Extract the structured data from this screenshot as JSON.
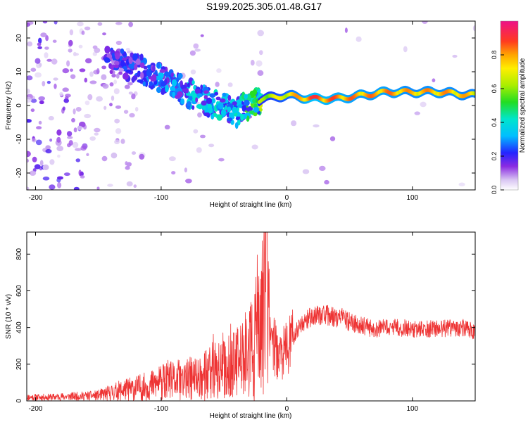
{
  "title": "S199.2025.305.01.48.G17",
  "colors": {
    "snr_line": "#ee3333",
    "axis": "#000000",
    "background": "#ffffff"
  },
  "spectrogram": {
    "type": "heatmap",
    "xlabel": "Height of straight line (km)",
    "ylabel": "Frequency (Hz)",
    "xlim": [
      -207,
      150
    ],
    "ylim": [
      -25,
      25
    ],
    "xticks": [
      -200,
      -100,
      0,
      100
    ],
    "yticks": [
      -20,
      -10,
      0,
      10,
      20
    ],
    "xtick_labels": [
      "-200",
      "-100",
      "0",
      "100"
    ],
    "ytick_labels": [
      "-20",
      "-10",
      "0",
      "10",
      "20"
    ],
    "colorbar": {
      "label": "Normalized spectral amplitude",
      "range": [
        0,
        1
      ],
      "ticks": [
        0.0,
        0.2,
        0.4,
        0.6,
        0.8
      ],
      "tick_labels": [
        "0.0",
        "0.2",
        "0.4",
        "0.6",
        "0.8"
      ]
    },
    "ridge": [
      {
        "x": -140,
        "f": 13,
        "a": 0.22
      },
      {
        "x": -120,
        "f": 11,
        "a": 0.25
      },
      {
        "x": -100,
        "f": 8,
        "a": 0.3
      },
      {
        "x": -85,
        "f": 5,
        "a": 0.35
      },
      {
        "x": -70,
        "f": 2,
        "a": 0.38
      },
      {
        "x": -55,
        "f": 0,
        "a": 0.4
      },
      {
        "x": -40,
        "f": -2,
        "a": 0.4
      },
      {
        "x": -20,
        "f": 2,
        "a": 0.65
      },
      {
        "x": 0,
        "f": 3,
        "a": 0.75
      },
      {
        "x": 20,
        "f": 2,
        "a": 0.92
      },
      {
        "x": 40,
        "f": 2,
        "a": 0.88
      },
      {
        "x": 60,
        "f": 3,
        "a": 0.85
      },
      {
        "x": 80,
        "f": 4,
        "a": 0.86
      },
      {
        "x": 100,
        "f": 4,
        "a": 0.82
      },
      {
        "x": 120,
        "f": 4,
        "a": 0.84
      },
      {
        "x": 150,
        "f": 3,
        "a": 0.8
      }
    ]
  },
  "snr": {
    "type": "line",
    "xlabel": "Height of straight line (km)",
    "ylabel": "SNR (10 * v/v)",
    "xlim": [
      -207,
      150
    ],
    "ylim": [
      0,
      920
    ],
    "xticks": [
      -200,
      -100,
      0,
      100
    ],
    "yticks": [
      0,
      200,
      400,
      600,
      800
    ],
    "xtick_labels": [
      "-200",
      "-100",
      "0",
      "100"
    ],
    "ytick_labels": [
      "0",
      "200",
      "400",
      "600",
      "800"
    ],
    "series": [
      {
        "name": "SNR",
        "x": [
          -207,
          -190,
          -170,
          -150,
          -130,
          -110,
          -100,
          -90,
          -80,
          -70,
          -60,
          -50,
          -40,
          -30,
          -25,
          -20,
          -18,
          -16,
          -14,
          -12,
          -10,
          -8,
          -5,
          0,
          5,
          10,
          15,
          20,
          25,
          30,
          35,
          40,
          45,
          50,
          60,
          70,
          80,
          90,
          100,
          110,
          120,
          130,
          140,
          150
        ],
        "y": [
          20,
          20,
          25,
          30,
          60,
          80,
          100,
          110,
          115,
          130,
          150,
          170,
          200,
          260,
          320,
          360,
          500,
          920,
          450,
          380,
          300,
          260,
          250,
          280,
          340,
          410,
          440,
          460,
          470,
          470,
          460,
          455,
          450,
          430,
          410,
          390,
          400,
          400,
          390,
          390,
          395,
          395,
          400,
          380
        ]
      }
    ]
  }
}
